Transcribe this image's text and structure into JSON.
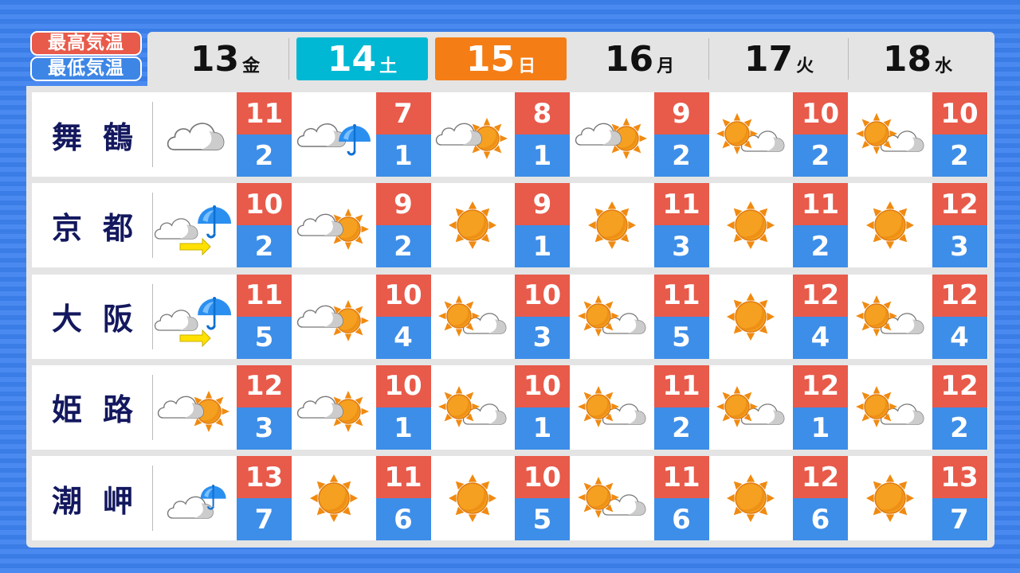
{
  "legend": {
    "high": "最高気温",
    "low": "最低気温"
  },
  "colors": {
    "high": "#e85a4a",
    "low": "#3d8ee8",
    "saturday": "#00b8d4",
    "sunday": "#f47d16",
    "sun": "#f5a020"
  },
  "days": [
    {
      "date": "13",
      "weekday": "金",
      "style": "normal"
    },
    {
      "date": "14",
      "weekday": "土",
      "style": "sat"
    },
    {
      "date": "15",
      "weekday": "日",
      "style": "sun"
    },
    {
      "date": "16",
      "weekday": "月",
      "style": "normal"
    },
    {
      "date": "17",
      "weekday": "火",
      "style": "normal"
    },
    {
      "date": "18",
      "weekday": "水",
      "style": "normal"
    }
  ],
  "cities": [
    {
      "name": [
        "舞",
        "鶴"
      ],
      "forecast": [
        {
          "icon": "cloudy",
          "high": "11",
          "low": "2"
        },
        {
          "icon": "cloudy-with-rain",
          "high": "7",
          "low": "1"
        },
        {
          "icon": "cloudy-then-sunny",
          "high": "8",
          "low": "1"
        },
        {
          "icon": "cloudy-then-sunny",
          "high": "9",
          "low": "2"
        },
        {
          "icon": "sunny-then-cloudy",
          "high": "10",
          "low": "2"
        },
        {
          "icon": "sunny-then-cloudy",
          "high": "10",
          "low": "2"
        }
      ]
    },
    {
      "name": [
        "京",
        "都"
      ],
      "forecast": [
        {
          "icon": "cloudy-later-rain",
          "high": "10",
          "low": "2"
        },
        {
          "icon": "cloudy-then-sunny",
          "high": "9",
          "low": "2"
        },
        {
          "icon": "sunny",
          "high": "9",
          "low": "1"
        },
        {
          "icon": "sunny",
          "high": "11",
          "low": "3"
        },
        {
          "icon": "sunny",
          "high": "11",
          "low": "2"
        },
        {
          "icon": "sunny",
          "high": "12",
          "low": "3"
        }
      ]
    },
    {
      "name": [
        "大",
        "阪"
      ],
      "forecast": [
        {
          "icon": "cloudy-later-rain",
          "high": "11",
          "low": "5"
        },
        {
          "icon": "cloudy-then-sunny",
          "high": "10",
          "low": "4"
        },
        {
          "icon": "sunny-then-cloudy",
          "high": "10",
          "low": "3"
        },
        {
          "icon": "sunny-then-cloudy",
          "high": "11",
          "low": "5"
        },
        {
          "icon": "sunny",
          "high": "12",
          "low": "4"
        },
        {
          "icon": "sunny-then-cloudy",
          "high": "12",
          "low": "4"
        }
      ]
    },
    {
      "name": [
        "姫",
        "路"
      ],
      "forecast": [
        {
          "icon": "cloudy-then-sunny",
          "high": "12",
          "low": "3"
        },
        {
          "icon": "cloudy-then-sunny",
          "high": "10",
          "low": "1"
        },
        {
          "icon": "sunny-then-cloudy",
          "high": "10",
          "low": "1"
        },
        {
          "icon": "sunny-then-cloudy",
          "high": "11",
          "low": "2"
        },
        {
          "icon": "sunny-then-cloudy",
          "high": "12",
          "low": "1"
        },
        {
          "icon": "sunny-then-cloudy",
          "high": "12",
          "low": "2"
        }
      ]
    },
    {
      "name": [
        "潮",
        "岬"
      ],
      "forecast": [
        {
          "icon": "cloudy-occasional-rain",
          "high": "13",
          "low": "7"
        },
        {
          "icon": "sunny",
          "high": "11",
          "low": "6"
        },
        {
          "icon": "sunny",
          "high": "10",
          "low": "5"
        },
        {
          "icon": "sunny-then-cloudy",
          "high": "11",
          "low": "6"
        },
        {
          "icon": "sunny",
          "high": "12",
          "low": "6"
        },
        {
          "icon": "sunny",
          "high": "13",
          "low": "7"
        }
      ]
    }
  ]
}
